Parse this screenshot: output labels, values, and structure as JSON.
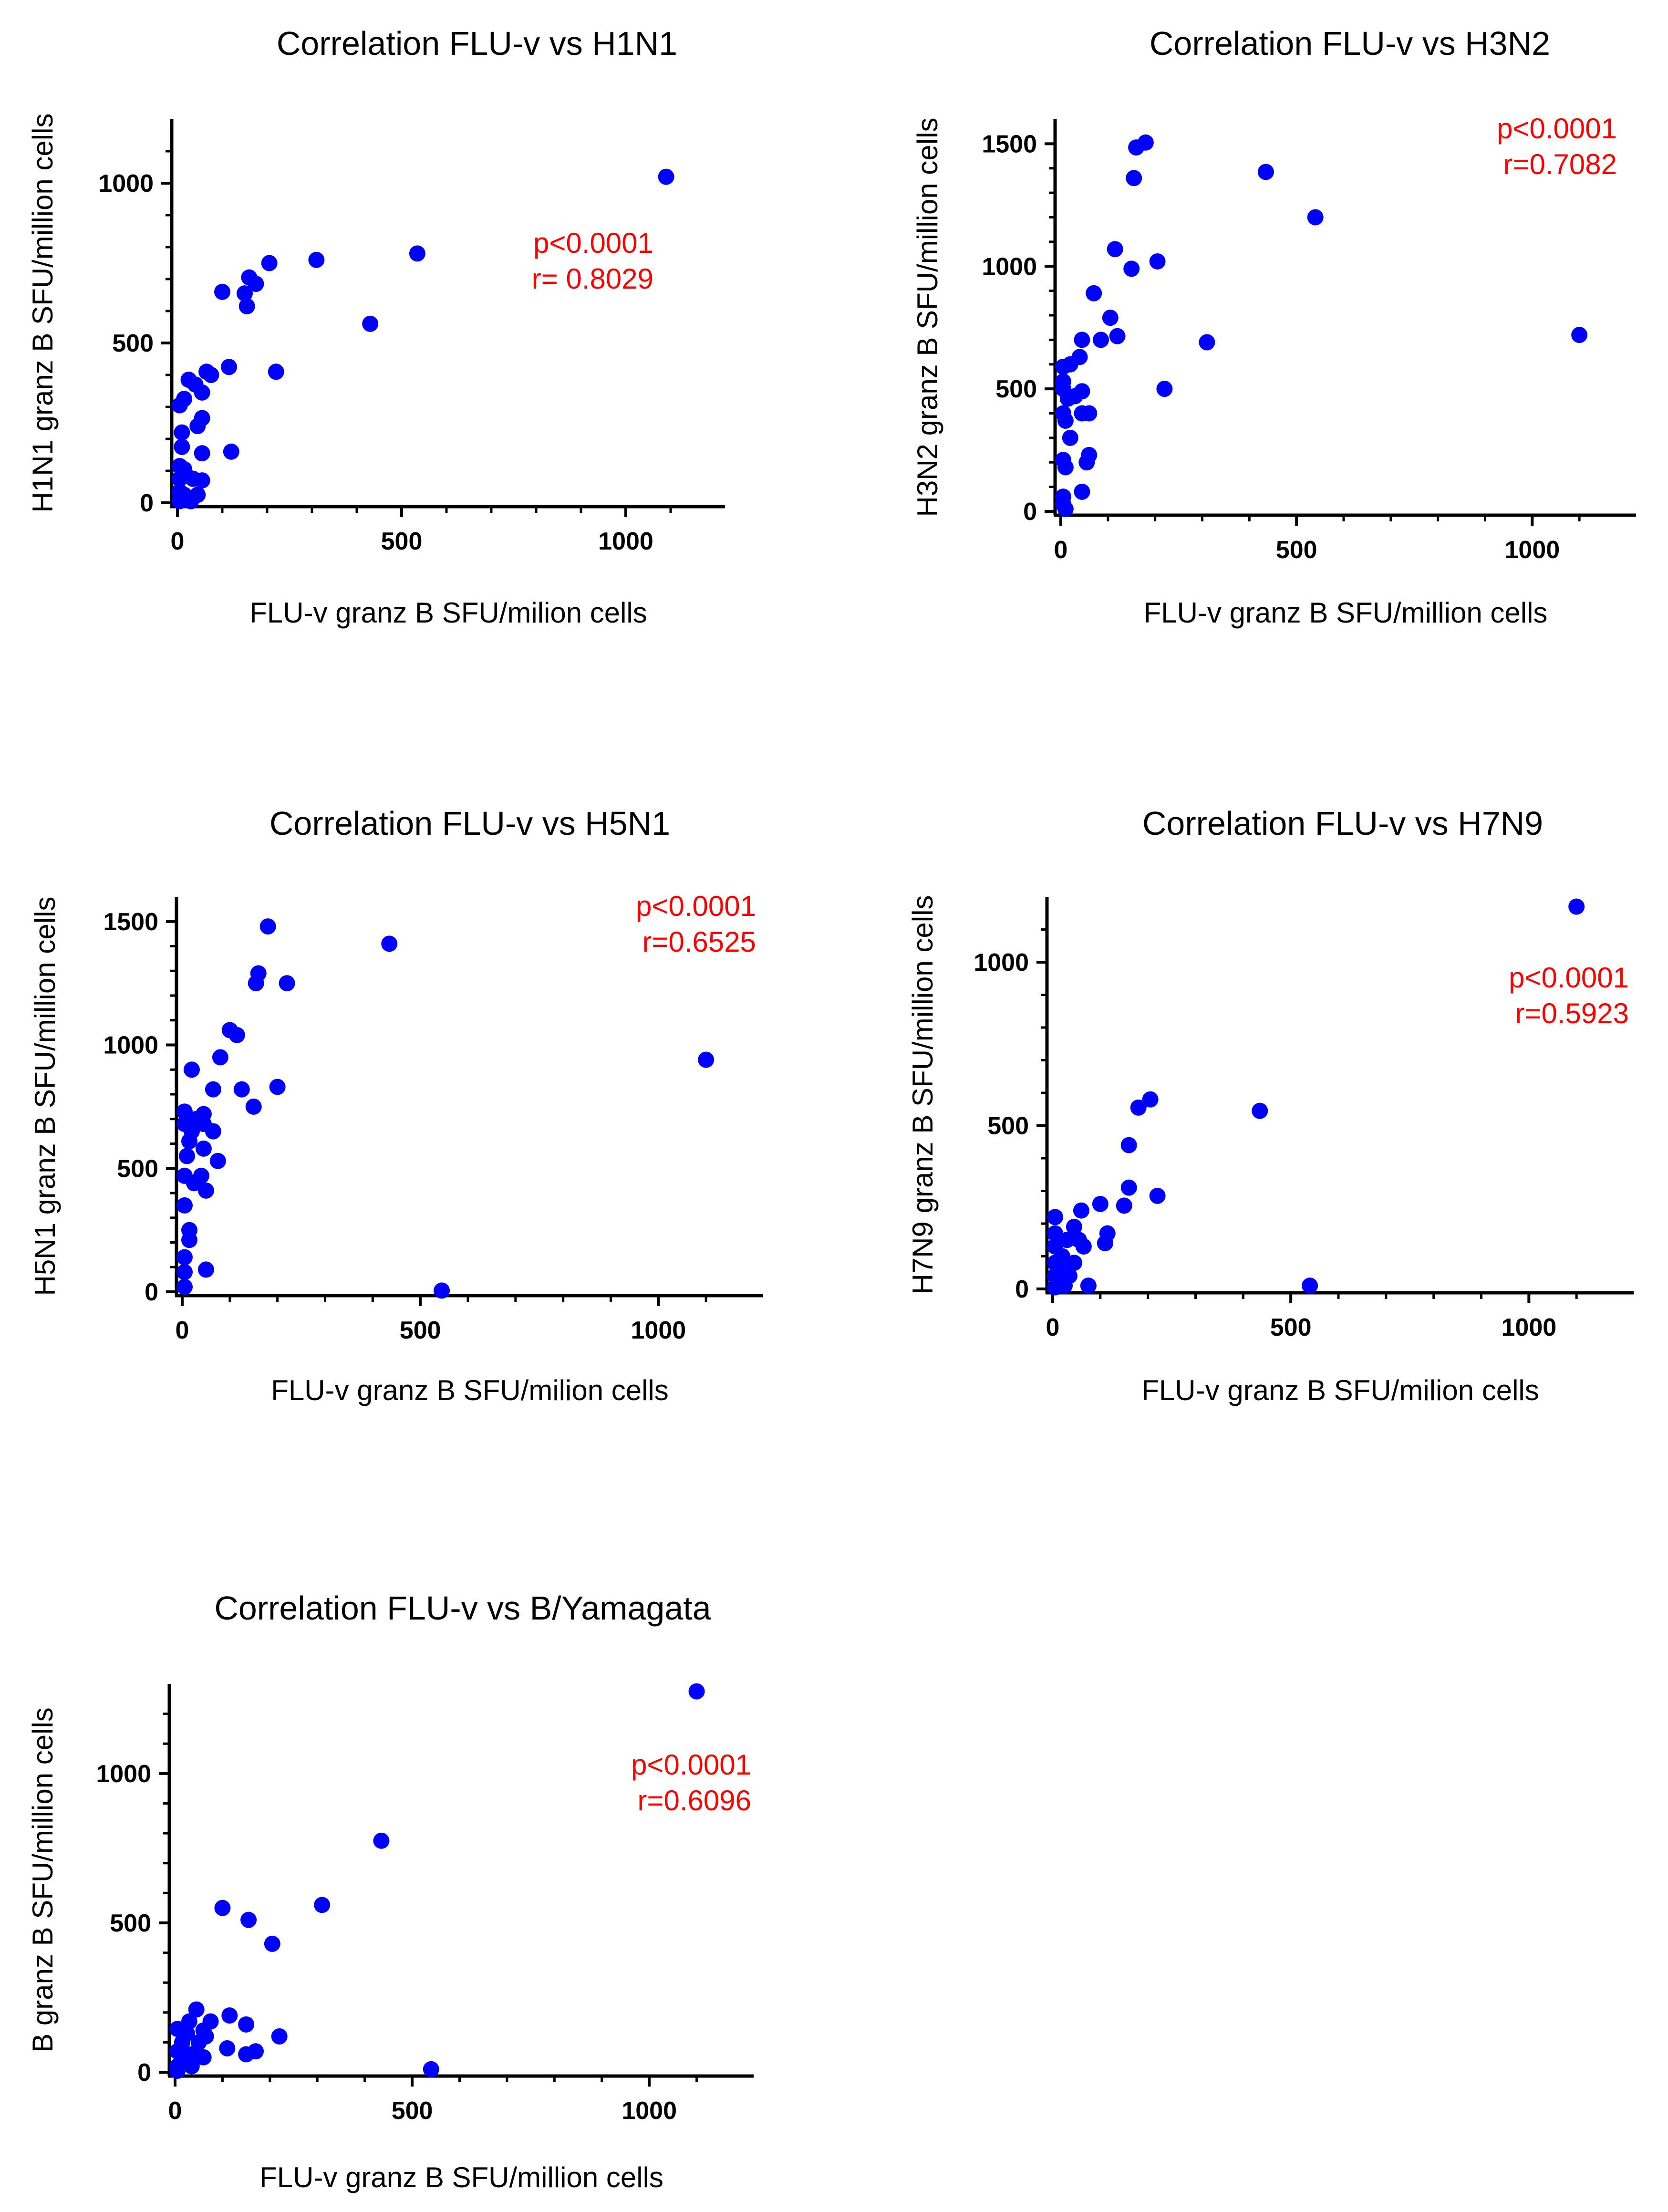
{
  "colors": {
    "point": "#0000ff",
    "stat_text": "#ff0000",
    "axis": "#000000"
  },
  "panels": [
    {
      "title": "Correlation FLU-v vs H1N1",
      "xlabel": "FLU-v granz B SFU/milion cells",
      "ylabel": "H1N1 granz B SFU/million cells",
      "stats": [
        "p<0.0001",
        "r= 0.8029"
      ]
    },
    {
      "title": "Correlation FLU-v vs H3N2",
      "xlabel": "FLU-v granz B SFU/million cells",
      "ylabel": "H3N2 granz B SFU/million cells",
      "stats": [
        "p<0.0001",
        "r=0.7082"
      ]
    },
    {
      "title": "Correlation FLU-v vs H5N1",
      "xlabel": "FLU-v granz B SFU/milion cells",
      "ylabel": "H5N1 granz B SFU/million cells",
      "stats": [
        "p<0.0001",
        "r=0.6525"
      ]
    },
    {
      "title": "Correlation FLU-v vs H7N9",
      "xlabel": "FLU-v granz B SFU/milion cells",
      "ylabel": "H7N9 granz B SFU/million cells",
      "stats": [
        "p<0.0001",
        "r=0.5923"
      ]
    },
    {
      "title": "Correlation FLU-v vs B/Yamagata",
      "xlabel": "FLU-v granz B SFU/million cells",
      "ylabel": "B granz B SFU/million cells",
      "stats": [
        "p<0.0001",
        "r=0.6096"
      ]
    }
  ],
  "chart_data": [
    {
      "type": "scatter",
      "title": "Correlation FLU-v vs H1N1",
      "xlabel": "FLU-v granz B SFU/milion cells",
      "ylabel": "H1N1 granz B SFU/million cells",
      "xlim": [
        0,
        1200
      ],
      "ylim": [
        0,
        1200
      ],
      "xticks": [
        0,
        500,
        1000
      ],
      "yticks": [
        0,
        500,
        1000
      ],
      "annotations": [
        "p<0.0001",
        "r= 0.8029"
      ],
      "points": [
        [
          1090,
          1020
        ],
        [
          535,
          780
        ],
        [
          430,
          560
        ],
        [
          310,
          760
        ],
        [
          205,
          750
        ],
        [
          220,
          410
        ],
        [
          175,
          685
        ],
        [
          160,
          705
        ],
        [
          155,
          615
        ],
        [
          150,
          655
        ],
        [
          100,
          660
        ],
        [
          115,
          425
        ],
        [
          120,
          160
        ],
        [
          75,
          400
        ],
        [
          65,
          410
        ],
        [
          55,
          345
        ],
        [
          55,
          265
        ],
        [
          55,
          155
        ],
        [
          45,
          240
        ],
        [
          40,
          370
        ],
        [
          25,
          385
        ],
        [
          15,
          325
        ],
        [
          5,
          305
        ],
        [
          10,
          220
        ],
        [
          10,
          175
        ],
        [
          5,
          115
        ],
        [
          15,
          105
        ],
        [
          20,
          85
        ],
        [
          5,
          75
        ],
        [
          35,
          75
        ],
        [
          55,
          70
        ],
        [
          5,
          35
        ],
        [
          15,
          25
        ],
        [
          45,
          25
        ],
        [
          30,
          5
        ],
        [
          5,
          5
        ]
      ]
    },
    {
      "type": "scatter",
      "title": "Correlation FLU-v vs H3N2",
      "xlabel": "FLU-v granz B SFU/million cells",
      "ylabel": "H3N2 granz B SFU/million cells",
      "xlim": [
        0,
        1200
      ],
      "ylim": [
        0,
        1600
      ],
      "xticks": [
        0,
        500,
        1000
      ],
      "yticks": [
        0,
        500,
        1000,
        1500
      ],
      "annotations": [
        "p<0.0001",
        "r=0.7082"
      ],
      "points": [
        [
          180,
          1505
        ],
        [
          160,
          1485
        ],
        [
          155,
          1360
        ],
        [
          150,
          990
        ],
        [
          435,
          1385
        ],
        [
          540,
          1200
        ],
        [
          1100,
          720
        ],
        [
          310,
          690
        ],
        [
          220,
          500
        ],
        [
          205,
          1020
        ],
        [
          115,
          1070
        ],
        [
          120,
          715
        ],
        [
          105,
          790
        ],
        [
          70,
          890
        ],
        [
          85,
          700
        ],
        [
          45,
          700
        ],
        [
          40,
          630
        ],
        [
          20,
          600
        ],
        [
          5,
          590
        ],
        [
          5,
          530
        ],
        [
          5,
          500
        ],
        [
          15,
          460
        ],
        [
          45,
          490
        ],
        [
          30,
          470
        ],
        [
          60,
          400
        ],
        [
          45,
          400
        ],
        [
          5,
          400
        ],
        [
          10,
          370
        ],
        [
          20,
          300
        ],
        [
          55,
          200
        ],
        [
          60,
          230
        ],
        [
          5,
          210
        ],
        [
          10,
          180
        ],
        [
          45,
          80
        ],
        [
          5,
          60
        ],
        [
          5,
          30
        ],
        [
          10,
          10
        ]
      ]
    },
    {
      "type": "scatter",
      "title": "Correlation FLU-v vs H5N1",
      "xlabel": "FLU-v granz B SFU/milion cells",
      "ylabel": "H5N1 granz B SFU/million cells",
      "xlim": [
        0,
        1200
      ],
      "ylim": [
        0,
        1600
      ],
      "xticks": [
        0,
        500,
        1000
      ],
      "yticks": [
        0,
        500,
        1000,
        1500
      ],
      "annotations": [
        "p<0.0001",
        "r=0.6525"
      ],
      "points": [
        [
          180,
          1480
        ],
        [
          435,
          1410
        ],
        [
          160,
          1290
        ],
        [
          155,
          1250
        ],
        [
          220,
          1250
        ],
        [
          100,
          1060
        ],
        [
          115,
          1040
        ],
        [
          80,
          950
        ],
        [
          1100,
          940
        ],
        [
          20,
          900
        ],
        [
          200,
          830
        ],
        [
          125,
          820
        ],
        [
          65,
          820
        ],
        [
          150,
          750
        ],
        [
          5,
          730
        ],
        [
          45,
          720
        ],
        [
          30,
          700
        ],
        [
          5,
          680
        ],
        [
          45,
          680
        ],
        [
          65,
          650
        ],
        [
          20,
          650
        ],
        [
          15,
          610
        ],
        [
          45,
          580
        ],
        [
          10,
          550
        ],
        [
          75,
          530
        ],
        [
          40,
          470
        ],
        [
          5,
          470
        ],
        [
          25,
          440
        ],
        [
          50,
          410
        ],
        [
          5,
          350
        ],
        [
          15,
          250
        ],
        [
          15,
          210
        ],
        [
          5,
          140
        ],
        [
          50,
          90
        ],
        [
          5,
          80
        ],
        [
          5,
          20
        ],
        [
          545,
          5
        ]
      ]
    },
    {
      "type": "scatter",
      "title": "Correlation FLU-v vs H7N9",
      "xlabel": "FLU-v granz B SFU/milion cells",
      "ylabel": "H7N9 granz B SFU/million cells",
      "xlim": [
        0,
        1200
      ],
      "ylim": [
        0,
        1200
      ],
      "xticks": [
        0,
        500,
        1000
      ],
      "yticks": [
        0,
        500,
        1000
      ],
      "annotations": [
        "p<0.0001",
        "r=0.5923"
      ],
      "points": [
        [
          1100,
          1170
        ],
        [
          435,
          545
        ],
        [
          205,
          580
        ],
        [
          180,
          555
        ],
        [
          160,
          440
        ],
        [
          160,
          310
        ],
        [
          150,
          255
        ],
        [
          220,
          285
        ],
        [
          100,
          260
        ],
        [
          115,
          170
        ],
        [
          110,
          140
        ],
        [
          60,
          240
        ],
        [
          5,
          220
        ],
        [
          45,
          190
        ],
        [
          30,
          150
        ],
        [
          5,
          170
        ],
        [
          55,
          150
        ],
        [
          65,
          130
        ],
        [
          5,
          130
        ],
        [
          20,
          100
        ],
        [
          5,
          80
        ],
        [
          45,
          80
        ],
        [
          15,
          60
        ],
        [
          5,
          40
        ],
        [
          35,
          40
        ],
        [
          10,
          20
        ],
        [
          75,
          10
        ],
        [
          25,
          10
        ],
        [
          540,
          10
        ],
        [
          5,
          5
        ]
      ]
    },
    {
      "type": "scatter",
      "title": "Correlation FLU-v vs B/Yamagata",
      "xlabel": "FLU-v granz B SFU/million cells",
      "ylabel": "B granz B SFU/million cells",
      "xlim": [
        0,
        1200
      ],
      "ylim": [
        0,
        1300
      ],
      "xticks": [
        0,
        500,
        1000
      ],
      "yticks": [
        0,
        500,
        1000
      ],
      "annotations": [
        "p<0.0001",
        "r=0.6096"
      ],
      "points": [
        [
          1100,
          1275
        ],
        [
          435,
          775
        ],
        [
          310,
          560
        ],
        [
          100,
          550
        ],
        [
          155,
          510
        ],
        [
          205,
          430
        ],
        [
          45,
          210
        ],
        [
          115,
          190
        ],
        [
          75,
          170
        ],
        [
          150,
          160
        ],
        [
          30,
          170
        ],
        [
          5,
          145
        ],
        [
          60,
          140
        ],
        [
          25,
          130
        ],
        [
          220,
          120
        ],
        [
          65,
          120
        ],
        [
          15,
          100
        ],
        [
          50,
          100
        ],
        [
          110,
          80
        ],
        [
          5,
          70
        ],
        [
          170,
          70
        ],
        [
          35,
          60
        ],
        [
          150,
          60
        ],
        [
          60,
          50
        ],
        [
          15,
          40
        ],
        [
          5,
          20
        ],
        [
          35,
          20
        ],
        [
          540,
          10
        ],
        [
          5,
          5
        ]
      ]
    }
  ]
}
